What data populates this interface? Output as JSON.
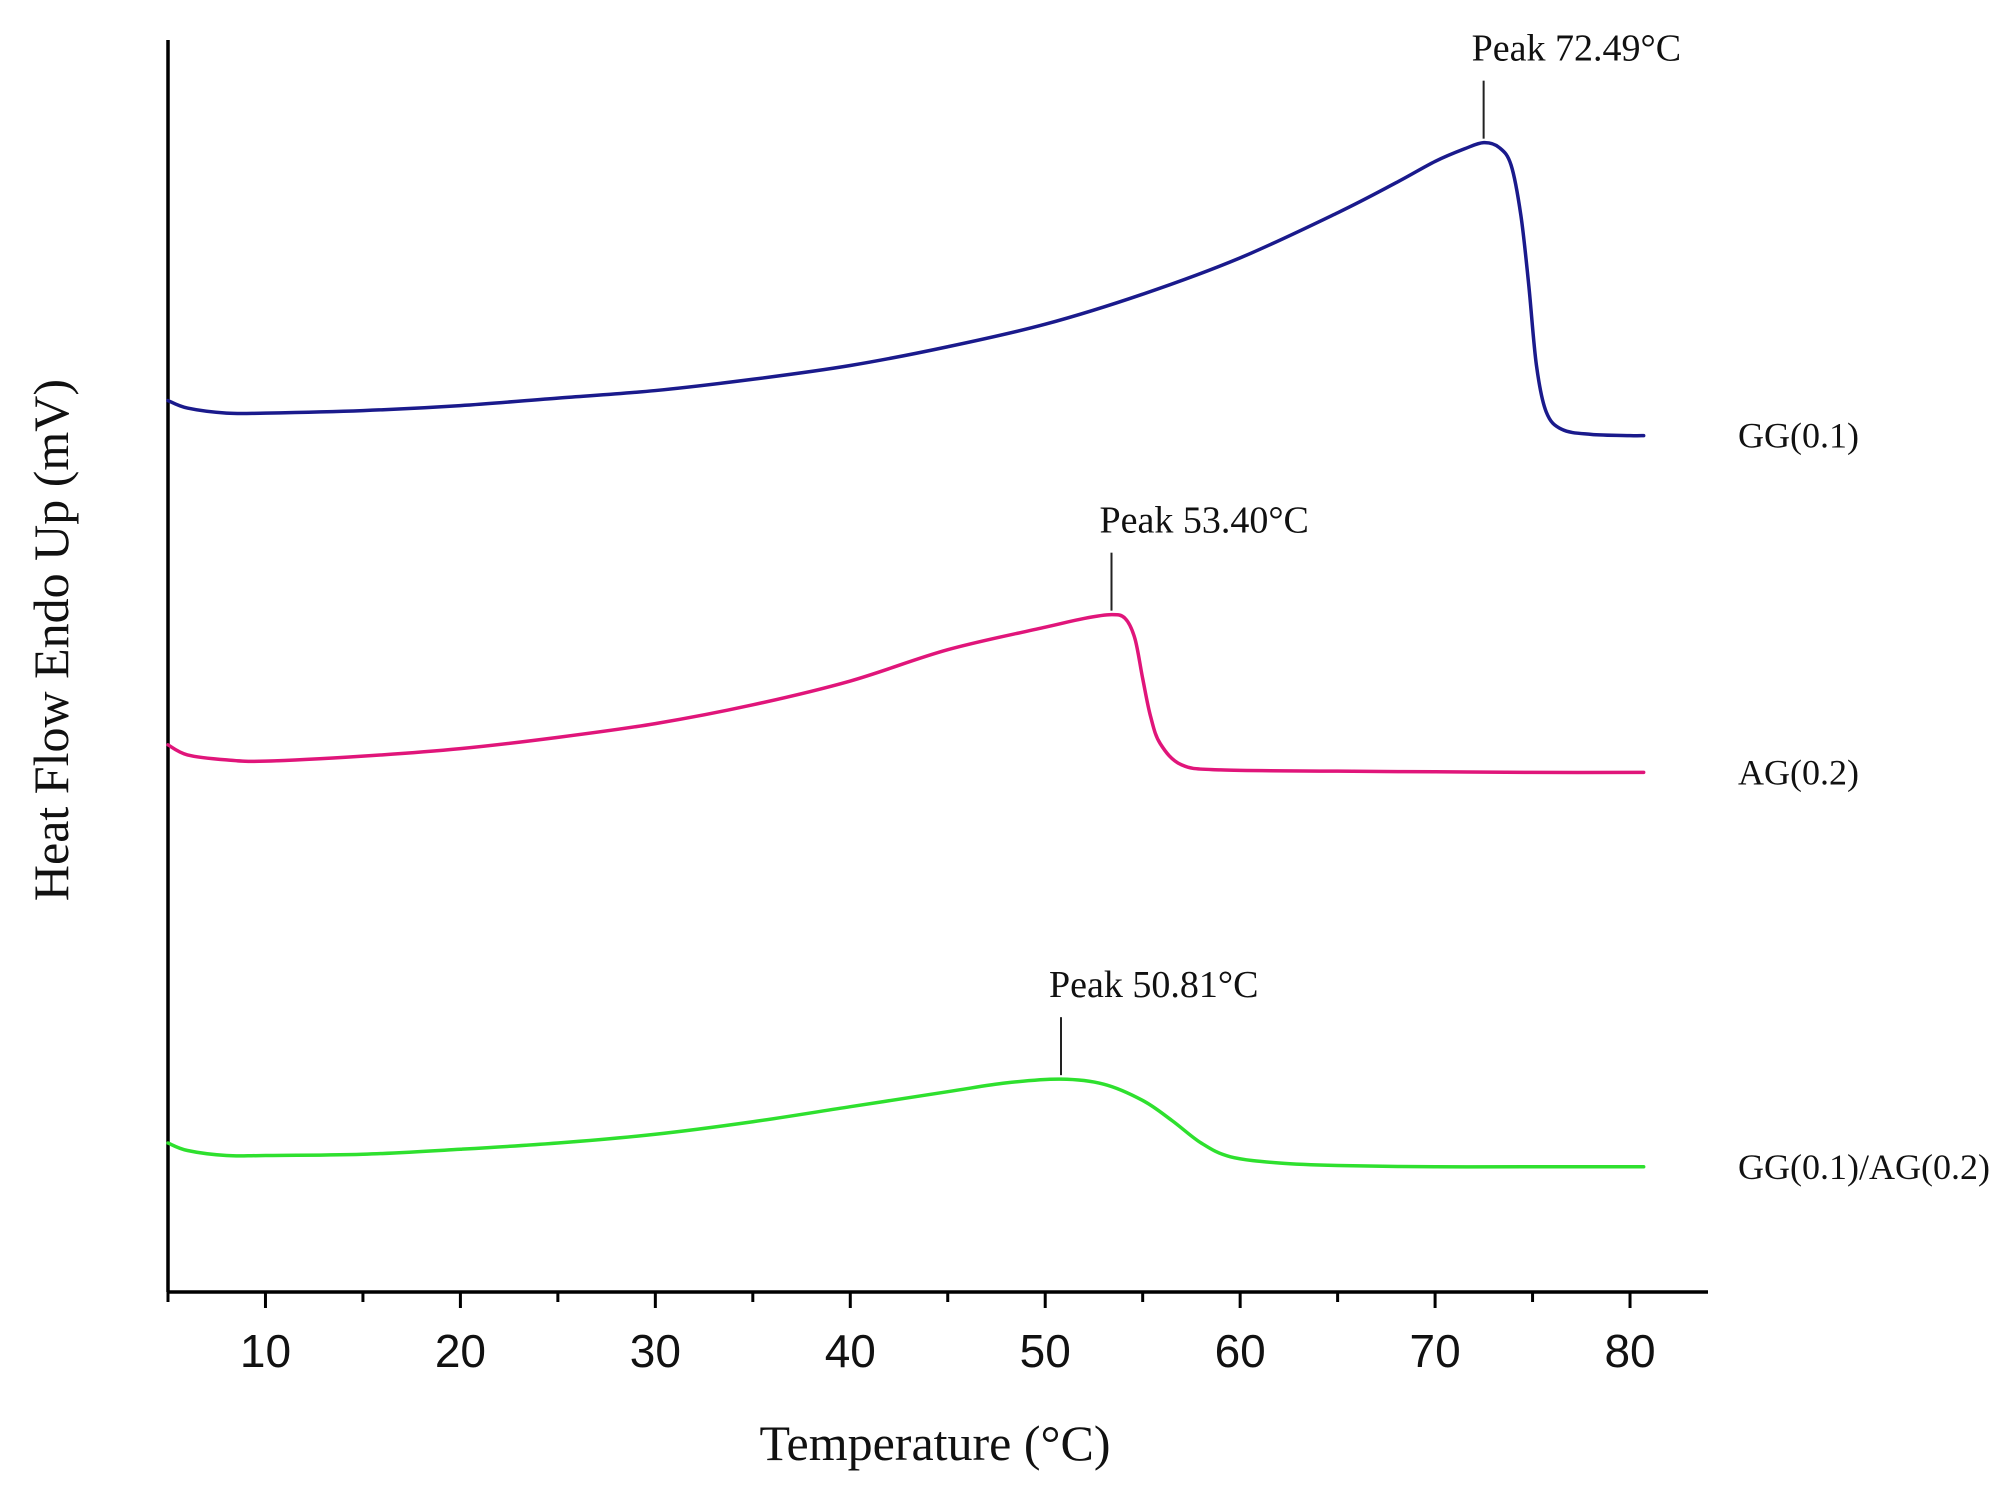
{
  "chart_data": {
    "type": "line",
    "title": "",
    "xlabel": "Temperature (°C)",
    "ylabel": "Heat Flow Endo Up (mV)",
    "xlim": [
      5,
      84
    ],
    "ylim": [
      0,
      100
    ],
    "x_ticks": [
      10,
      20,
      30,
      40,
      50,
      60,
      70,
      80
    ],
    "x_tick_labels": [
      "10",
      "20",
      "30",
      "40",
      "50",
      "60",
      "70",
      "80"
    ],
    "grid": false,
    "y_ticks_shown": false,
    "series": [
      {
        "name": "GG(0.1)",
        "color": "#1a1a8c",
        "points": [
          [
            5,
            71.2
          ],
          [
            6,
            70.6
          ],
          [
            8,
            70.2
          ],
          [
            10,
            70.2
          ],
          [
            15,
            70.4
          ],
          [
            20,
            70.8
          ],
          [
            25,
            71.4
          ],
          [
            30,
            72.0
          ],
          [
            35,
            72.9
          ],
          [
            40,
            74.0
          ],
          [
            45,
            75.5
          ],
          [
            50,
            77.3
          ],
          [
            55,
            79.7
          ],
          [
            60,
            82.6
          ],
          [
            65,
            86.2
          ],
          [
            68,
            88.6
          ],
          [
            70,
            90.3
          ],
          [
            71.5,
            91.3
          ],
          [
            72.5,
            91.8
          ],
          [
            73.3,
            91.4
          ],
          [
            73.9,
            90.0
          ],
          [
            74.4,
            86.0
          ],
          [
            74.8,
            80.5
          ],
          [
            75.2,
            74.0
          ],
          [
            75.7,
            70.3
          ],
          [
            76.5,
            68.9
          ],
          [
            78,
            68.5
          ],
          [
            80,
            68.4
          ],
          [
            80.7,
            68.4
          ]
        ]
      },
      {
        "name": "AG(0.2)",
        "color": "#e0157a",
        "points": [
          [
            5,
            43.7
          ],
          [
            6,
            42.9
          ],
          [
            8,
            42.5
          ],
          [
            10,
            42.4
          ],
          [
            15,
            42.8
          ],
          [
            20,
            43.4
          ],
          [
            25,
            44.3
          ],
          [
            30,
            45.4
          ],
          [
            35,
            46.9
          ],
          [
            40,
            48.8
          ],
          [
            45,
            51.3
          ],
          [
            50,
            53.1
          ],
          [
            52,
            53.8
          ],
          [
            53.4,
            54.1
          ],
          [
            54.1,
            53.8
          ],
          [
            54.6,
            52.2
          ],
          [
            55.0,
            49.0
          ],
          [
            55.4,
            46.0
          ],
          [
            55.9,
            43.8
          ],
          [
            57,
            42.1
          ],
          [
            59,
            41.7
          ],
          [
            65,
            41.6
          ],
          [
            70,
            41.55
          ],
          [
            75,
            41.5
          ],
          [
            80.7,
            41.5
          ]
        ]
      },
      {
        "name": "GG(0.1)/AG(0.2)",
        "color": "#2ee02e",
        "points": [
          [
            5,
            11.9
          ],
          [
            6,
            11.3
          ],
          [
            8,
            10.9
          ],
          [
            10,
            10.9
          ],
          [
            15,
            11.0
          ],
          [
            20,
            11.4
          ],
          [
            25,
            11.9
          ],
          [
            30,
            12.6
          ],
          [
            35,
            13.6
          ],
          [
            40,
            14.8
          ],
          [
            45,
            16.0
          ],
          [
            48,
            16.7
          ],
          [
            50.8,
            17.0
          ],
          [
            53,
            16.6
          ],
          [
            55,
            15.3
          ],
          [
            56.5,
            13.7
          ],
          [
            58,
            11.9
          ],
          [
            59.5,
            10.8
          ],
          [
            62,
            10.3
          ],
          [
            65,
            10.1
          ],
          [
            70,
            10.0
          ],
          [
            75,
            10.0
          ],
          [
            80.7,
            10.0
          ]
        ]
      }
    ],
    "annotations": [
      {
        "series": "GG(0.1)",
        "text": "Peak 72.49°C",
        "x": 72.49,
        "y": 91.8
      },
      {
        "series": "AG(0.2)",
        "text": "Peak 53.40°C",
        "x": 53.4,
        "y": 54.1
      },
      {
        "series": "GG(0.1)/AG(0.2)",
        "text": "Peak 50.81°C",
        "x": 50.81,
        "y": 17.0
      }
    ],
    "legend": "right-of-curves"
  }
}
